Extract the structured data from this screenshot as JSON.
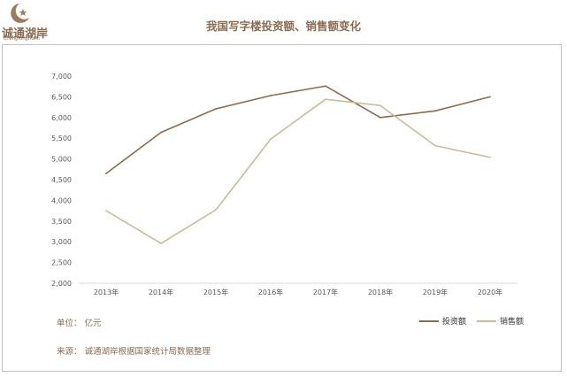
{
  "logo": {
    "name": "诚通湖岸",
    "subtitle": "ChengTongHuAn"
  },
  "footer": {
    "unit": "单位： 亿元",
    "source": "来源： 诚通湖岸根据国家统计局数据整理"
  },
  "colors": {
    "investment": "#8c6a4d",
    "sales": "#c9bb9c",
    "grid": "#d9d9d9",
    "title": "#8b6b52"
  },
  "chart_data": {
    "type": "line",
    "title": "我国写字楼投资额、销售额变化",
    "categories": [
      "2013年",
      "2014年",
      "2015年",
      "2016年",
      "2017年",
      "2018年",
      "2019年",
      "2020年"
    ],
    "series": [
      {
        "name": "投资额",
        "values": [
          4650,
          5640,
          6210,
          6530,
          6760,
          6000,
          6160,
          6500
        ]
      },
      {
        "name": "销售额",
        "values": [
          3750,
          2960,
          3770,
          5480,
          6440,
          6290,
          5320,
          5040
        ]
      }
    ],
    "ylim": [
      2000,
      7000
    ],
    "yticks": [
      "2,000",
      "2,500",
      "3,000",
      "3,500",
      "4,000",
      "4,500",
      "5,000",
      "5,500",
      "6,000",
      "6,500",
      "7,000"
    ],
    "grid": false,
    "legend": "bottom-right"
  }
}
